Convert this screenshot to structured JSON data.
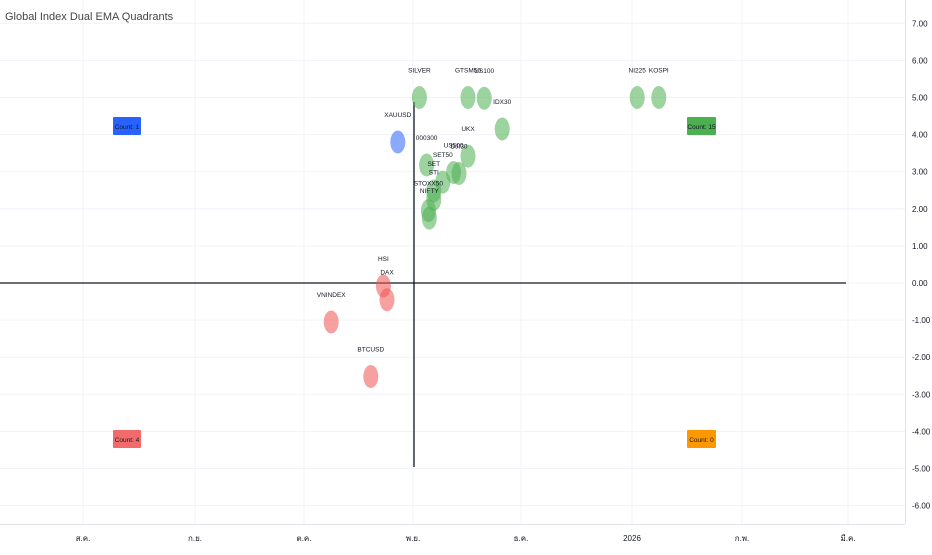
{
  "chart_data": {
    "type": "scatter",
    "title": "Global Index Dual EMA Quadrants",
    "y_ticks": [
      "7.00",
      "6.00",
      "5.00",
      "4.00",
      "3.00",
      "2.00",
      "1.00",
      "0.00",
      "-1.00",
      "-2.00",
      "-3.00",
      "-4.00",
      "-5.00",
      "-6.00"
    ],
    "ylim": [
      -6.4,
      7.3
    ],
    "x_ticks": [
      "ส.ค.",
      "ก.ย.",
      "ต.ค.",
      "พ.ย.",
      "ธ.ค.",
      "2026",
      "ก.พ.",
      "มี.ค."
    ],
    "grid": true,
    "quadrant_counts": {
      "top_left": "Count: 1",
      "top_right": "Count: 15",
      "bottom_left": "Count: 4",
      "bottom_right": "Count: 0"
    },
    "colors": {
      "green": "#4caf50",
      "red": "#ef5350",
      "blue": "#2962ff",
      "orange": "#ff9800",
      "axis": "#131722"
    },
    "points": [
      {
        "label": "SILVER",
        "x": 0.06,
        "y": 5.0,
        "color": "green"
      },
      {
        "label": "GTSM50",
        "x": 0.6,
        "y": 5.0,
        "color": "green"
      },
      {
        "label": "US100",
        "x": 0.78,
        "y": 4.98,
        "color": "green"
      },
      {
        "label": "NI225",
        "x": 2.48,
        "y": 5.0,
        "color": "green"
      },
      {
        "label": "KOSPI",
        "x": 2.72,
        "y": 5.0,
        "color": "green"
      },
      {
        "label": "IDX30",
        "x": 0.98,
        "y": 4.15,
        "color": "green"
      },
      {
        "label": "XAUUSD",
        "x": -0.18,
        "y": 3.8,
        "color": "blue"
      },
      {
        "label": "UKX",
        "x": 0.6,
        "y": 3.42,
        "color": "green"
      },
      {
        "label": "000300",
        "x": 0.14,
        "y": 3.18,
        "color": "green"
      },
      {
        "label": "US500",
        "x": 0.44,
        "y": 2.98,
        "color": "green"
      },
      {
        "label": "DJI30",
        "x": 0.5,
        "y": 2.95,
        "color": "green"
      },
      {
        "label": "SET50",
        "x": 0.32,
        "y": 2.72,
        "color": "green"
      },
      {
        "label": "SET",
        "x": 0.22,
        "y": 2.48,
        "color": "green"
      },
      {
        "label": "STI",
        "x": 0.22,
        "y": 2.25,
        "color": "green"
      },
      {
        "label": "STOXX50",
        "x": 0.16,
        "y": 1.95,
        "color": "green"
      },
      {
        "label": "NIFTY",
        "x": 0.17,
        "y": 1.75,
        "color": "green"
      },
      {
        "label": "HSI",
        "x": -0.34,
        "y": -0.08,
        "color": "red"
      },
      {
        "label": "DAX",
        "x": -0.3,
        "y": -0.45,
        "color": "red"
      },
      {
        "label": "VNINDEX",
        "x": -0.92,
        "y": -1.05,
        "color": "red"
      },
      {
        "label": "BTCUSD",
        "x": -0.48,
        "y": -2.52,
        "color": "red"
      }
    ]
  }
}
